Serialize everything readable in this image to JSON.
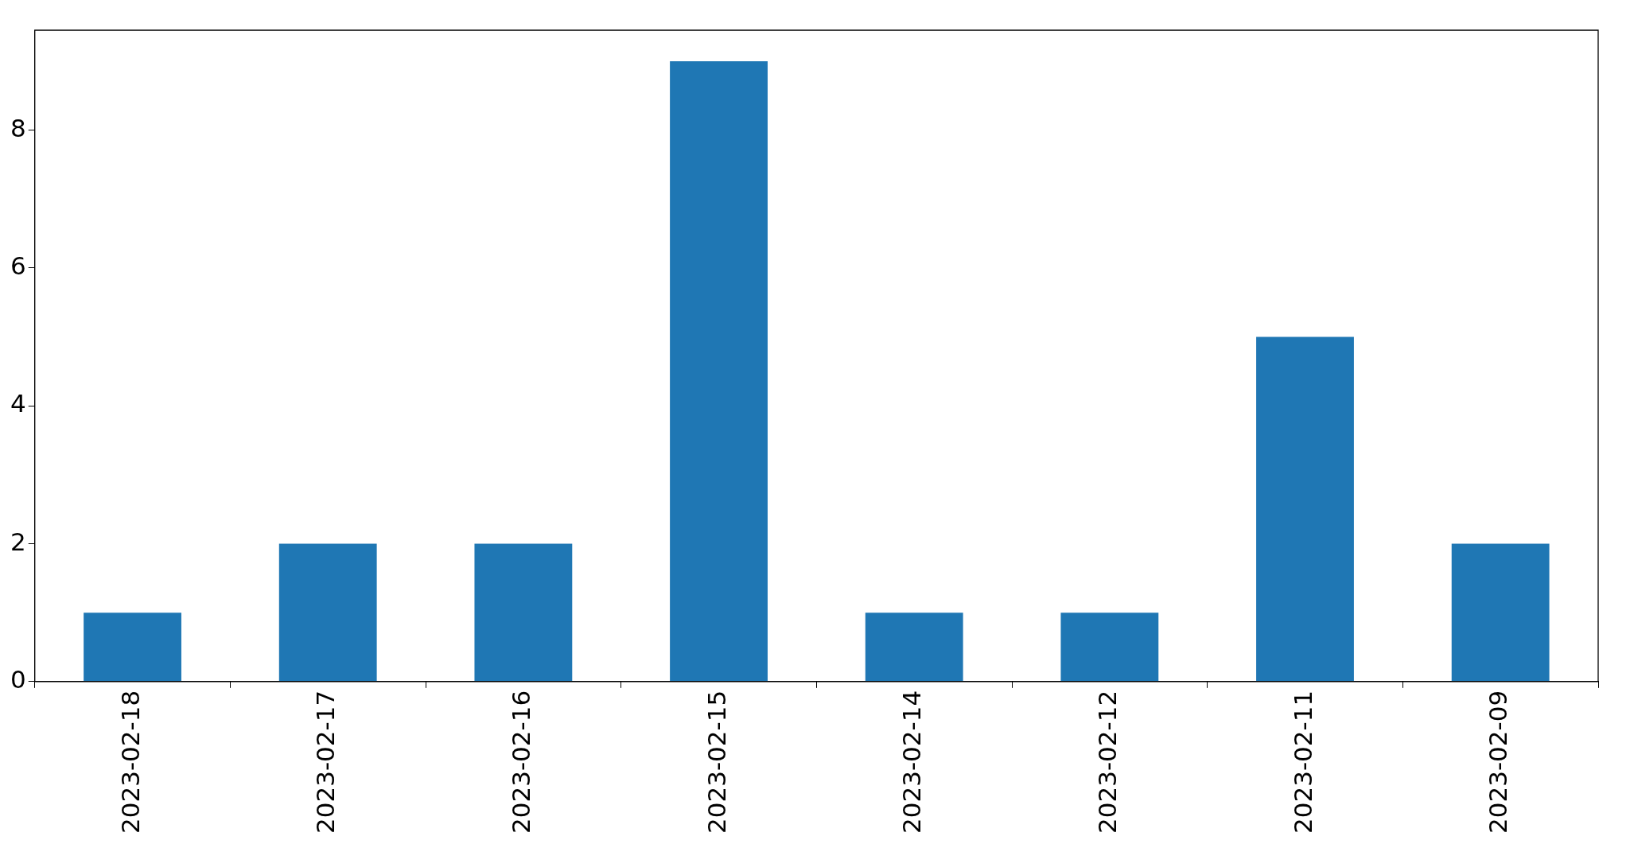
{
  "chart_data": {
    "type": "bar",
    "categories": [
      "2023-02-18",
      "2023-02-17",
      "2023-02-16",
      "2023-02-15",
      "2023-02-14",
      "2023-02-12",
      "2023-02-11",
      "2023-02-09"
    ],
    "values": [
      1,
      2,
      2,
      9,
      1,
      1,
      5,
      2
    ],
    "color": "#1f77b4",
    "ylim": [
      0,
      9.45
    ],
    "yticks": [
      0,
      2,
      4,
      6,
      8
    ],
    "grid": false,
    "legend": false
  }
}
